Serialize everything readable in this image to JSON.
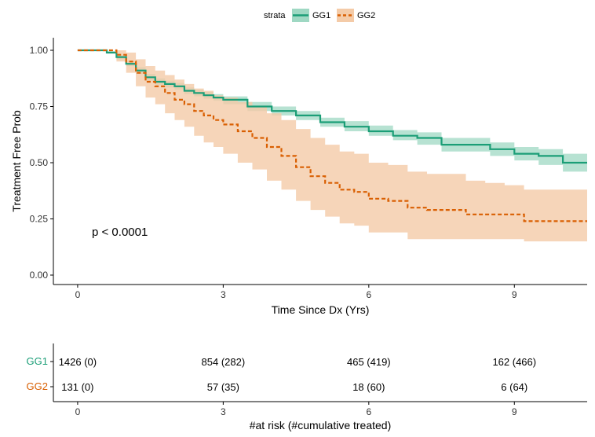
{
  "chart_data": {
    "type": "line",
    "subtype": "kaplan-meier",
    "xlabel": "Time Since Dx (Yrs)",
    "ylabel": "Treatment Free Prob",
    "xlim": [
      -0.5,
      10.5
    ],
    "ylim": [
      0,
      1.05
    ],
    "x_ticks": [
      0,
      3,
      6,
      9
    ],
    "y_ticks": [
      0.0,
      0.25,
      0.5,
      0.75,
      1.0
    ],
    "y_tick_labels": [
      "0.00",
      "0.25",
      "0.50",
      "0.75",
      "1.00"
    ],
    "grid": false,
    "annotation": "p < 0.0001",
    "legend": {
      "title": "strata",
      "position": "top",
      "entries": [
        "GG1",
        "GG2"
      ]
    },
    "series": [
      {
        "name": "GG1",
        "color": "#1b9e77",
        "band_color": "#9fd8c3",
        "line_style": "solid",
        "x": [
          0,
          0.4,
          0.6,
          0.8,
          1.0,
          1.2,
          1.4,
          1.6,
          1.8,
          2.0,
          2.2,
          2.4,
          2.6,
          2.8,
          3.0,
          3.5,
          4.0,
          4.5,
          5.0,
          5.5,
          6.0,
          6.5,
          7.0,
          7.5,
          8.0,
          8.5,
          9.0,
          9.5,
          10.0,
          10.5
        ],
        "y": [
          1.0,
          1.0,
          0.99,
          0.97,
          0.94,
          0.91,
          0.88,
          0.86,
          0.85,
          0.84,
          0.82,
          0.81,
          0.8,
          0.79,
          0.78,
          0.75,
          0.73,
          0.71,
          0.68,
          0.66,
          0.64,
          0.62,
          0.61,
          0.58,
          0.58,
          0.56,
          0.54,
          0.53,
          0.5,
          0.5
        ],
        "lower": [
          1.0,
          1.0,
          0.985,
          0.96,
          0.93,
          0.895,
          0.865,
          0.845,
          0.835,
          0.825,
          0.805,
          0.795,
          0.785,
          0.775,
          0.76,
          0.73,
          0.71,
          0.69,
          0.66,
          0.64,
          0.62,
          0.6,
          0.58,
          0.55,
          0.55,
          0.53,
          0.51,
          0.49,
          0.46,
          0.46
        ],
        "upper": [
          1.0,
          1.0,
          0.995,
          0.98,
          0.95,
          0.925,
          0.895,
          0.875,
          0.865,
          0.855,
          0.835,
          0.825,
          0.815,
          0.805,
          0.795,
          0.77,
          0.75,
          0.73,
          0.7,
          0.685,
          0.665,
          0.645,
          0.635,
          0.61,
          0.61,
          0.59,
          0.57,
          0.56,
          0.54,
          0.54
        ]
      },
      {
        "name": "GG2",
        "color": "#d95f02",
        "band_color": "#f4cba8",
        "line_style": "dashed",
        "x": [
          0,
          0.5,
          0.8,
          1.0,
          1.2,
          1.4,
          1.6,
          1.8,
          2.0,
          2.2,
          2.4,
          2.6,
          2.8,
          3.0,
          3.3,
          3.6,
          3.9,
          4.2,
          4.5,
          4.8,
          5.1,
          5.4,
          5.7,
          6.0,
          6.4,
          6.8,
          7.2,
          7.6,
          8.0,
          8.4,
          8.8,
          9.2,
          9.6,
          10.0,
          10.5
        ],
        "y": [
          1.0,
          1.0,
          0.98,
          0.95,
          0.9,
          0.86,
          0.84,
          0.81,
          0.78,
          0.76,
          0.73,
          0.71,
          0.69,
          0.67,
          0.64,
          0.61,
          0.57,
          0.53,
          0.48,
          0.44,
          0.41,
          0.38,
          0.37,
          0.34,
          0.33,
          0.3,
          0.29,
          0.29,
          0.27,
          0.27,
          0.27,
          0.24,
          0.24,
          0.24,
          0.24
        ],
        "lower": [
          1.0,
          1.0,
          0.95,
          0.9,
          0.84,
          0.79,
          0.76,
          0.72,
          0.69,
          0.66,
          0.62,
          0.59,
          0.57,
          0.54,
          0.5,
          0.47,
          0.42,
          0.38,
          0.33,
          0.29,
          0.26,
          0.23,
          0.22,
          0.19,
          0.19,
          0.16,
          0.16,
          0.16,
          0.16,
          0.16,
          0.16,
          0.15,
          0.15,
          0.15,
          0.15
        ],
        "upper": [
          1.0,
          1.0,
          1.0,
          0.99,
          0.96,
          0.93,
          0.91,
          0.89,
          0.87,
          0.85,
          0.83,
          0.82,
          0.8,
          0.79,
          0.77,
          0.75,
          0.72,
          0.69,
          0.65,
          0.61,
          0.58,
          0.55,
          0.54,
          0.5,
          0.49,
          0.46,
          0.45,
          0.45,
          0.42,
          0.41,
          0.4,
          0.38,
          0.38,
          0.38,
          0.38
        ]
      }
    ],
    "risk_table": {
      "xlabel": "#at risk (#cumulative treated)",
      "times": [
        0,
        3,
        6,
        9
      ],
      "rows": [
        {
          "name": "GG1",
          "color": "#1b9e77",
          "values": [
            "1426 (0)",
            "854 (282)",
            "465 (419)",
            "162 (466)"
          ]
        },
        {
          "name": "GG2",
          "color": "#d95f02",
          "values": [
            "131 (0)",
            "57 (35)",
            "18 (60)",
            "6 (64)"
          ]
        }
      ]
    }
  }
}
